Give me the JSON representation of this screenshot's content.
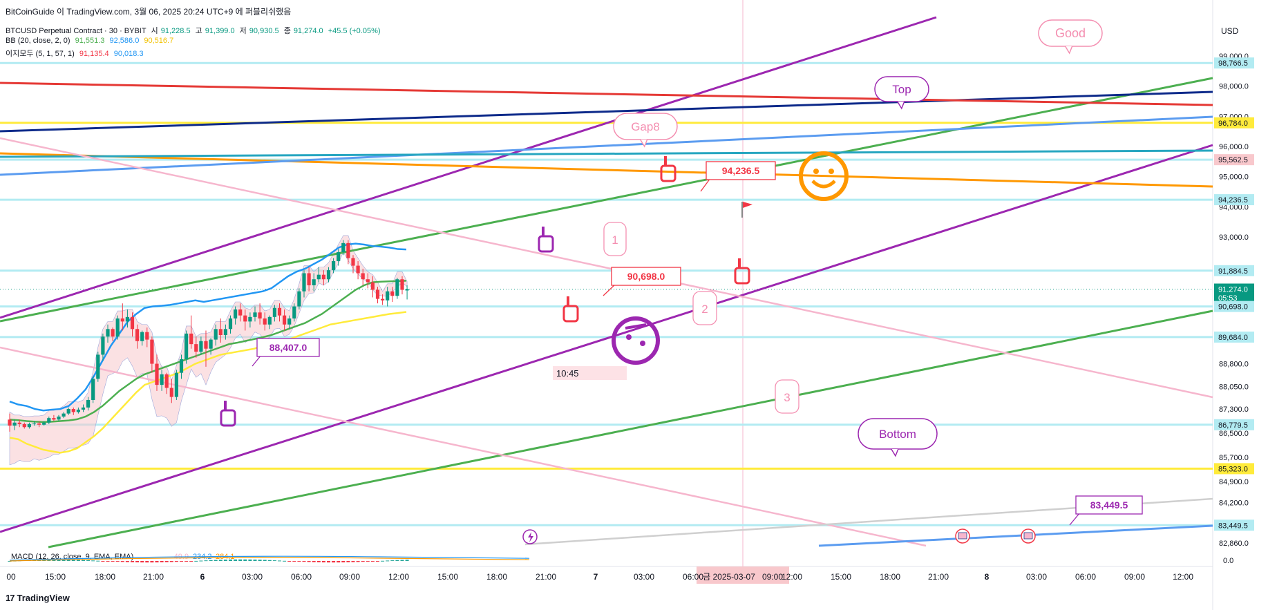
{
  "header": {
    "title_line": "BitCoinGuide 이 TradingView.com, 3월 06, 2025 20:24 UTC+9 에 퍼블리쉬했음",
    "symbol": "BTCUSD Perpetual Contract · 30 · BYBIT",
    "open_label": "시",
    "open_value": "91,228.5",
    "high_label": "고",
    "high_value": "91,399.0",
    "low_label": "저",
    "low_value": "90,930.5",
    "close_label": "종",
    "close_value": "91,274.0",
    "change": "+45.5 (+0.05%)",
    "bb_label": "BB (20, close, 2, 0)",
    "bb_values": [
      "91,551.3",
      "92,586.0",
      "90,516.7"
    ],
    "ichimoku_label": "이지모두 (5, 1, 57, 1)",
    "ichimoku_values": [
      "91,135.4",
      "90,018.3"
    ],
    "macd_label": "MACD (12, 26, close, 9, EMA, EMA)",
    "macd_values": [
      "-49.9",
      "234.2",
      "284.1"
    ]
  },
  "currency": "USD",
  "watermark": "TradingView",
  "colors": {
    "up": "#089981",
    "down": "#f23645",
    "bb_upper": "#2196f3",
    "bb_mid": "#4caf50",
    "bb_lower": "#ffeb3b",
    "cloud": "#f8c8cc",
    "purple": "#9c27b0",
    "green": "#4caf50",
    "navy": "#0d2a8a",
    "red": "#e53935",
    "yellow": "#ffeb3b",
    "orange": "#ff9800",
    "lightblue": "#5b9cf0",
    "teal": "#26a6c0",
    "pink": "#f6b6cd"
  },
  "chart_data": {
    "type": "candlestick",
    "y_range": [
      82600,
      100200
    ],
    "y_ticks": [
      "99,000.0",
      "98,000.0",
      "97,000.0",
      "96,000.0",
      "95,000.0",
      "94,000.0",
      "93,000.0",
      "88,800.0",
      "88,050.0",
      "87,300.0",
      "86,500.0",
      "85,700.0",
      "84,900.0",
      "84,200.0",
      "82,860.0"
    ],
    "x_ticks": [
      "00",
      "15:00",
      "18:00",
      "21:00",
      "6",
      "03:00",
      "06:00",
      "09:00",
      "12:00",
      "15:00",
      "18:00",
      "21:00",
      "7",
      "03:00",
      "06:00",
      "금 2025-03-07",
      "09:00",
      "12:00",
      "15:00",
      "18:00",
      "21:00",
      "8",
      "03:00",
      "06:00",
      "09:00",
      "12:00"
    ],
    "price_labels": [
      {
        "text": "98,766.5",
        "value": 98766.5,
        "color": "#b2ebf2",
        "text_color": "#131722"
      },
      {
        "text": "96,784.0",
        "value": 96784.0,
        "color": "#ffeb3b",
        "text_color": "#131722"
      },
      {
        "text": "95,562.5",
        "value": 95562.5,
        "color": "#f8c8cc",
        "text_color": "#131722"
      },
      {
        "text": "94,236.5",
        "value": 94236.5,
        "color": "#b2ebf2",
        "text_color": "#131722"
      },
      {
        "text": "91,884.5",
        "value": 91884.5,
        "color": "#b2ebf2",
        "text_color": "#131722"
      },
      {
        "text": "91,274.0",
        "value": 91274.0,
        "color": "#089981",
        "text_color": "#ffffff"
      },
      {
        "text": "05:53",
        "value": 90990,
        "color": "#089981",
        "text_color": "#ffffff"
      },
      {
        "text": "90,698.0",
        "value": 90698.0,
        "color": "#b2ebf2",
        "text_color": "#131722"
      },
      {
        "text": "89,684.0",
        "value": 89684.0,
        "color": "#b2ebf2",
        "text_color": "#131722"
      },
      {
        "text": "86,779.5",
        "value": 86779.5,
        "color": "#b2ebf2",
        "text_color": "#131722"
      },
      {
        "text": "85,323.0",
        "value": 85323.0,
        "color": "#ffeb3b",
        "text_color": "#131722"
      },
      {
        "text": "83,449.5",
        "value": 83449.5,
        "color": "#b2ebf2",
        "text_color": "#131722"
      }
    ],
    "horizontal_levels": [
      98766.5,
      96784.0,
      95562.5,
      94236.5,
      91884.5,
      90698.0,
      89684.0,
      86779.5,
      85323.0,
      83449.5
    ],
    "candles": [
      {
        "o": 86950,
        "h": 87150,
        "c": 86750,
        "l": 86550
      },
      {
        "o": 86750,
        "h": 86950,
        "c": 86850,
        "l": 86600
      },
      {
        "o": 86850,
        "h": 86950,
        "c": 86800,
        "l": 86700
      },
      {
        "o": 86800,
        "h": 86850,
        "c": 86700,
        "l": 86650
      },
      {
        "o": 86700,
        "h": 86850,
        "c": 86800,
        "l": 86650
      },
      {
        "o": 86800,
        "h": 86900,
        "c": 86820,
        "l": 86750
      },
      {
        "o": 86820,
        "h": 86900,
        "c": 86780,
        "l": 86700
      },
      {
        "o": 86780,
        "h": 86900,
        "c": 86850,
        "l": 86750
      },
      {
        "o": 86850,
        "h": 87050,
        "c": 87000,
        "l": 86800
      },
      {
        "o": 87000,
        "h": 87100,
        "c": 86950,
        "l": 86900
      },
      {
        "o": 86950,
        "h": 87100,
        "c": 87050,
        "l": 86900
      },
      {
        "o": 87050,
        "h": 87200,
        "c": 87150,
        "l": 87000
      },
      {
        "o": 87150,
        "h": 87350,
        "c": 87300,
        "l": 87100
      },
      {
        "o": 87300,
        "h": 87350,
        "c": 87200,
        "l": 87100
      },
      {
        "o": 87200,
        "h": 87350,
        "c": 87280,
        "l": 87150
      },
      {
        "o": 87280,
        "h": 87450,
        "c": 87350,
        "l": 87200
      },
      {
        "o": 87350,
        "h": 87700,
        "c": 87600,
        "l": 87250
      },
      {
        "o": 87600,
        "h": 88400,
        "c": 88300,
        "l": 87500
      },
      {
        "o": 88300,
        "h": 89200,
        "c": 89100,
        "l": 88200
      },
      {
        "o": 89100,
        "h": 89800,
        "c": 89700,
        "l": 88900
      },
      {
        "o": 89700,
        "h": 90100,
        "c": 89950,
        "l": 89500
      },
      {
        "o": 89950,
        "h": 90000,
        "c": 89700,
        "l": 89550
      },
      {
        "o": 89700,
        "h": 90400,
        "c": 90300,
        "l": 89600
      },
      {
        "o": 90300,
        "h": 90800,
        "c": 90200,
        "l": 89900
      },
      {
        "o": 90200,
        "h": 90600,
        "c": 90350,
        "l": 90000
      },
      {
        "o": 90350,
        "h": 90500,
        "c": 89950,
        "l": 89700
      },
      {
        "o": 89950,
        "h": 90100,
        "c": 89550,
        "l": 89300
      },
      {
        "o": 89550,
        "h": 89900,
        "c": 89850,
        "l": 89400
      },
      {
        "o": 89850,
        "h": 90000,
        "c": 89600,
        "l": 89350
      },
      {
        "o": 89600,
        "h": 89700,
        "c": 88800,
        "l": 88500
      },
      {
        "o": 88800,
        "h": 89100,
        "c": 88100,
        "l": 87900
      },
      {
        "o": 88100,
        "h": 88600,
        "c": 88450,
        "l": 87900
      },
      {
        "o": 88450,
        "h": 88500,
        "c": 88000,
        "l": 87800
      },
      {
        "o": 88000,
        "h": 88300,
        "c": 87700,
        "l": 87500
      },
      {
        "o": 87700,
        "h": 88600,
        "c": 88500,
        "l": 87600
      },
      {
        "o": 88500,
        "h": 89100,
        "c": 88950,
        "l": 88300
      },
      {
        "o": 88950,
        "h": 89900,
        "c": 89800,
        "l": 88800
      },
      {
        "o": 89800,
        "h": 90400,
        "c": 89450,
        "l": 89300
      },
      {
        "o": 89450,
        "h": 89700,
        "c": 89200,
        "l": 89000
      },
      {
        "o": 89200,
        "h": 89700,
        "c": 89550,
        "l": 89100
      },
      {
        "o": 89550,
        "h": 89900,
        "c": 89300,
        "l": 88700
      },
      {
        "o": 89300,
        "h": 89650,
        "c": 89600,
        "l": 89100
      },
      {
        "o": 89600,
        "h": 90100,
        "c": 89950,
        "l": 89400
      },
      {
        "o": 89950,
        "h": 90300,
        "c": 89750,
        "l": 89500
      },
      {
        "o": 89750,
        "h": 90100,
        "c": 89950,
        "l": 89600
      },
      {
        "o": 89950,
        "h": 90400,
        "c": 90300,
        "l": 89800
      },
      {
        "o": 90300,
        "h": 90700,
        "c": 90600,
        "l": 90100
      },
      {
        "o": 90600,
        "h": 90800,
        "c": 90400,
        "l": 90200
      },
      {
        "o": 90400,
        "h": 90600,
        "c": 90200,
        "l": 89900
      },
      {
        "o": 90200,
        "h": 90500,
        "c": 90350,
        "l": 90000
      },
      {
        "o": 90350,
        "h": 90700,
        "c": 90500,
        "l": 90200
      },
      {
        "o": 90500,
        "h": 90800,
        "c": 90300,
        "l": 90100
      },
      {
        "o": 90300,
        "h": 90500,
        "c": 90100,
        "l": 89900
      },
      {
        "o": 90100,
        "h": 90400,
        "c": 90350,
        "l": 89950
      },
      {
        "o": 90350,
        "h": 90750,
        "c": 90650,
        "l": 90200
      },
      {
        "o": 90650,
        "h": 90800,
        "c": 90400,
        "l": 90200
      },
      {
        "o": 90400,
        "h": 90600,
        "c": 90100,
        "l": 89900
      },
      {
        "o": 90100,
        "h": 90400,
        "c": 90300,
        "l": 89950
      },
      {
        "o": 90300,
        "h": 90800,
        "c": 90700,
        "l": 90200
      },
      {
        "o": 90700,
        "h": 91300,
        "c": 91200,
        "l": 90600
      },
      {
        "o": 91200,
        "h": 91900,
        "c": 91800,
        "l": 91000
      },
      {
        "o": 91800,
        "h": 92000,
        "c": 91400,
        "l": 91200
      },
      {
        "o": 91400,
        "h": 91800,
        "c": 91600,
        "l": 91200
      },
      {
        "o": 91600,
        "h": 92000,
        "c": 91750,
        "l": 91500
      },
      {
        "o": 91750,
        "h": 91900,
        "c": 91600,
        "l": 91400
      },
      {
        "o": 91600,
        "h": 92000,
        "c": 91900,
        "l": 91500
      },
      {
        "o": 91900,
        "h": 92300,
        "c": 92200,
        "l": 91800
      },
      {
        "o": 92200,
        "h": 92600,
        "c": 92500,
        "l": 92050
      },
      {
        "o": 92500,
        "h": 92900,
        "c": 92800,
        "l": 92400
      },
      {
        "o": 92800,
        "h": 92900,
        "c": 92300,
        "l": 92100
      },
      {
        "o": 92300,
        "h": 92400,
        "c": 92050,
        "l": 91800
      },
      {
        "o": 92050,
        "h": 92200,
        "c": 91800,
        "l": 91600
      },
      {
        "o": 91800,
        "h": 91950,
        "c": 91600,
        "l": 91400
      },
      {
        "o": 91600,
        "h": 91800,
        "c": 91500,
        "l": 91300
      },
      {
        "o": 91500,
        "h": 91700,
        "c": 91250,
        "l": 91000
      },
      {
        "o": 91250,
        "h": 91350,
        "c": 90950,
        "l": 90800
      },
      {
        "o": 90950,
        "h": 91100,
        "c": 90900,
        "l": 90750
      },
      {
        "o": 90900,
        "h": 91350,
        "c": 91200,
        "l": 90700
      },
      {
        "o": 91200,
        "h": 91350,
        "c": 91050,
        "l": 90850
      },
      {
        "o": 91050,
        "h": 91650,
        "c": 91600,
        "l": 90950
      },
      {
        "o": 91600,
        "h": 91700,
        "c": 91250,
        "l": 91100
      },
      {
        "o": 91228.5,
        "h": 91399.0,
        "c": 91274.0,
        "l": 90930.5
      }
    ],
    "bb_upper": [
      87550,
      87450,
      87400,
      87300,
      87250,
      87280,
      87300,
      87400,
      87650,
      87950,
      88400,
      88900,
      89400,
      89800,
      90200,
      90450,
      90650,
      90700,
      90720,
      90750,
      90800,
      90850,
      90900,
      90850,
      90900,
      90950,
      91000,
      91050,
      91100,
      91150,
      91200,
      91300,
      91500,
      91700,
      91850,
      91950,
      92100,
      92250,
      92450,
      92650,
      92750,
      92780,
      92750,
      92700,
      92680,
      92650,
      92600,
      92586
    ],
    "bb_mid": [
      86950,
      86930,
      86900,
      86880,
      86870,
      86880,
      86900,
      86920,
      86960,
      87050,
      87200,
      87400,
      87650,
      87900,
      88100,
      88300,
      88450,
      88550,
      88650,
      88750,
      88850,
      88950,
      89050,
      89150,
      89250,
      89350,
      89450,
      89500,
      89560,
      89620,
      89680,
      89750,
      89850,
      89950,
      90050,
      90150,
      90300,
      90450,
      90650,
      90850,
      91050,
      91250,
      91400,
      91500,
      91520,
      91530,
      91540,
      91551
    ],
    "bb_lower": [
      86350,
      86300,
      86150,
      86050,
      85950,
      85900,
      85850,
      85900,
      86000,
      86200,
      86400,
      86650,
      86950,
      87250,
      87550,
      87850,
      88100,
      88200,
      88300,
      88400,
      88500,
      88650,
      88800,
      88900,
      89000,
      89100,
      89150,
      89200,
      89250,
      89300,
      89400,
      89500,
      89550,
      89600,
      89700,
      89800,
      89900,
      90000,
      90100,
      90150,
      90200,
      90250,
      90300,
      90350,
      90400,
      90450,
      90480,
      90517
    ],
    "annotations": [
      "Good",
      "Top",
      "Gap8",
      "1",
      "2",
      "3",
      "Bottom",
      "10:45",
      "88,407.0",
      "90,698.0",
      "94,236.5",
      "83,449.5"
    ]
  }
}
